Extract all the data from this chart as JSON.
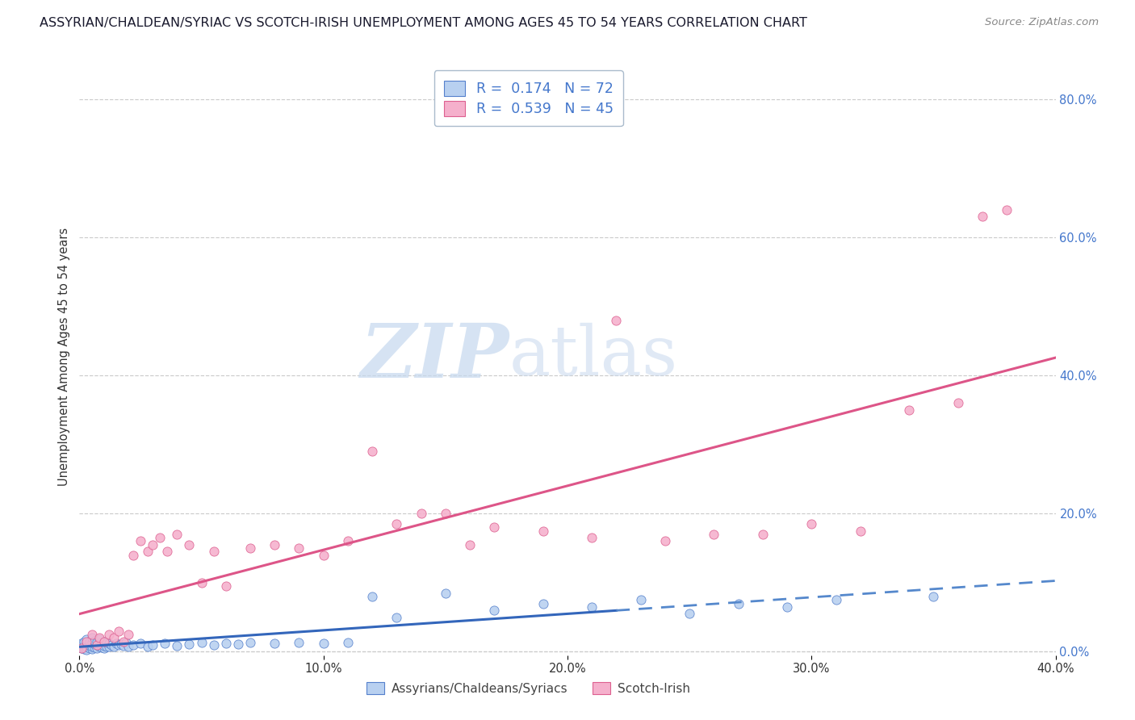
{
  "title": "ASSYRIAN/CHALDEAN/SYRIAC VS SCOTCH-IRISH UNEMPLOYMENT AMONG AGES 45 TO 54 YEARS CORRELATION CHART",
  "source": "Source: ZipAtlas.com",
  "ylabel": "Unemployment Among Ages 45 to 54 years",
  "xlim": [
    0.0,
    0.4
  ],
  "ylim": [
    -0.005,
    0.86
  ],
  "blue_R": 0.174,
  "blue_N": 72,
  "pink_R": 0.539,
  "pink_N": 45,
  "blue_face": "#b8d0f0",
  "blue_edge": "#5580cc",
  "pink_face": "#f5b0cc",
  "pink_edge": "#dd6090",
  "blue_line_solid": "#3366bb",
  "blue_line_dash": "#5588cc",
  "pink_line": "#dd5588",
  "legend_label_blue": "Assyrians/Chaldeans/Syriacs",
  "legend_label_pink": "Scotch-Irish",
  "bg_color": "#ffffff",
  "title_fontsize": 11.5,
  "right_tick_color": "#4477cc",
  "grid_color": "#cccccc",
  "watermark_zip_color": "#c8dcf0",
  "watermark_atlas_color": "#c8dcf0",
  "blue_x": [
    0.001,
    0.001,
    0.001,
    0.002,
    0.002,
    0.002,
    0.002,
    0.003,
    0.003,
    0.003,
    0.003,
    0.004,
    0.004,
    0.004,
    0.005,
    0.005,
    0.005,
    0.005,
    0.006,
    0.006,
    0.006,
    0.007,
    0.007,
    0.007,
    0.008,
    0.008,
    0.008,
    0.009,
    0.009,
    0.01,
    0.01,
    0.01,
    0.011,
    0.011,
    0.012,
    0.012,
    0.013,
    0.014,
    0.015,
    0.016,
    0.017,
    0.018,
    0.019,
    0.02,
    0.022,
    0.025,
    0.028,
    0.03,
    0.035,
    0.04,
    0.045,
    0.05,
    0.055,
    0.06,
    0.065,
    0.07,
    0.08,
    0.09,
    0.1,
    0.11,
    0.12,
    0.13,
    0.15,
    0.17,
    0.19,
    0.21,
    0.23,
    0.25,
    0.27,
    0.29,
    0.31,
    0.35
  ],
  "blue_y": [
    0.005,
    0.008,
    0.012,
    0.004,
    0.006,
    0.01,
    0.015,
    0.003,
    0.007,
    0.012,
    0.018,
    0.005,
    0.009,
    0.014,
    0.004,
    0.008,
    0.013,
    0.02,
    0.006,
    0.011,
    0.016,
    0.005,
    0.01,
    0.015,
    0.007,
    0.012,
    0.018,
    0.006,
    0.011,
    0.005,
    0.009,
    0.015,
    0.008,
    0.013,
    0.007,
    0.012,
    0.01,
    0.008,
    0.012,
    0.01,
    0.011,
    0.009,
    0.013,
    0.008,
    0.01,
    0.012,
    0.008,
    0.01,
    0.012,
    0.009,
    0.011,
    0.013,
    0.01,
    0.012,
    0.011,
    0.013,
    0.012,
    0.013,
    0.012,
    0.013,
    0.08,
    0.05,
    0.085,
    0.06,
    0.07,
    0.065,
    0.075,
    0.055,
    0.07,
    0.065,
    0.075,
    0.08
  ],
  "pink_x": [
    0.001,
    0.003,
    0.005,
    0.007,
    0.008,
    0.01,
    0.012,
    0.014,
    0.016,
    0.018,
    0.02,
    0.022,
    0.025,
    0.028,
    0.03,
    0.033,
    0.036,
    0.04,
    0.045,
    0.05,
    0.055,
    0.06,
    0.07,
    0.08,
    0.09,
    0.1,
    0.11,
    0.12,
    0.13,
    0.14,
    0.15,
    0.16,
    0.17,
    0.19,
    0.21,
    0.22,
    0.24,
    0.26,
    0.28,
    0.3,
    0.32,
    0.34,
    0.36,
    0.37,
    0.38
  ],
  "pink_y": [
    0.005,
    0.015,
    0.025,
    0.01,
    0.02,
    0.015,
    0.025,
    0.02,
    0.03,
    0.015,
    0.025,
    0.14,
    0.16,
    0.145,
    0.155,
    0.165,
    0.145,
    0.17,
    0.155,
    0.1,
    0.145,
    0.095,
    0.15,
    0.155,
    0.15,
    0.14,
    0.16,
    0.29,
    0.185,
    0.2,
    0.2,
    0.155,
    0.18,
    0.175,
    0.165,
    0.48,
    0.16,
    0.17,
    0.17,
    0.185,
    0.175,
    0.35,
    0.36,
    0.63,
    0.64
  ]
}
